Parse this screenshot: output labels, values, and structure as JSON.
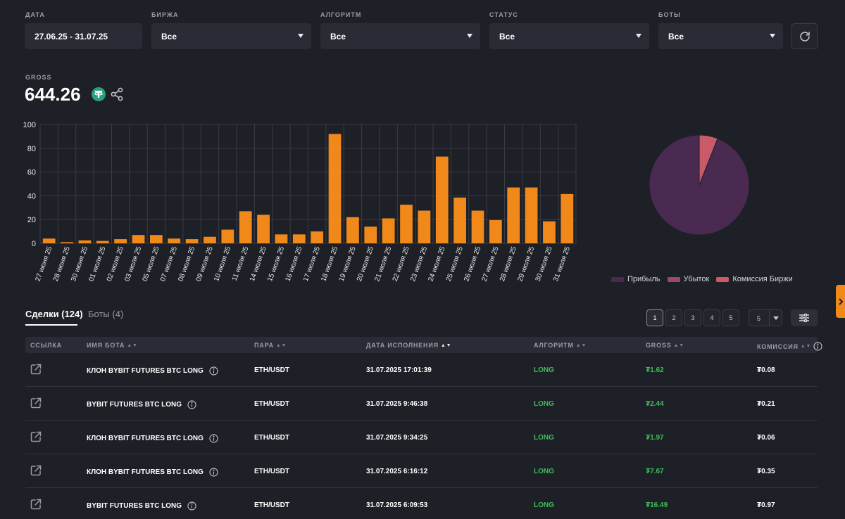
{
  "filters": [
    {
      "label": "ДАТА",
      "value": "27.06.25 - 31.07.25",
      "dropdown": false
    },
    {
      "label": "БИРЖА",
      "value": "Все",
      "dropdown": true
    },
    {
      "label": "АЛГОРИТМ",
      "value": "Все",
      "dropdown": true
    },
    {
      "label": "СТАТУС",
      "value": "Все",
      "dropdown": true
    },
    {
      "label": "БОТЫ",
      "value": "Все",
      "dropdown": true
    }
  ],
  "refresh_icon": "refresh-icon",
  "gross": {
    "label": "GROSS",
    "value": "644.26",
    "currency_icon": "tether-icon",
    "share_icon": "share-icon"
  },
  "chart_data": [
    {
      "type": "bar",
      "color": "#f0891a",
      "ylim": [
        0,
        100
      ],
      "yticks": [
        0,
        20,
        40,
        60,
        80,
        100
      ],
      "grid": true,
      "categories": [
        "27 июня 25",
        "28 июня 25",
        "30 июня 25",
        "01 июля 25",
        "02 июля 25",
        "03 июля 25",
        "05 июля 25",
        "07 июля 25",
        "08 июля 25",
        "09 июля 25",
        "10 июля 25",
        "11 июля 25",
        "14 июля 25",
        "15 июля 25",
        "16 июля 25",
        "17 июля 25",
        "18 июля 25",
        "19 июля 25",
        "20 июля 25",
        "21 июля 25",
        "22 июля 25",
        "23 июля 25",
        "24 июля 25",
        "25 июля 25",
        "26 июля 25",
        "27 июля 25",
        "28 июля 25",
        "29 июля 25",
        "30 июля 25",
        "31 июля 25"
      ],
      "values": [
        4,
        1,
        2.5,
        2,
        3.5,
        7,
        7,
        4,
        3.5,
        5.5,
        11.5,
        27,
        24,
        7.5,
        7.5,
        10,
        92,
        22,
        14,
        21,
        32.5,
        27.5,
        73,
        38.5,
        27.5,
        19.5,
        47,
        47,
        18.5,
        41.5
      ]
    },
    {
      "type": "pie",
      "legend_position": "bottom",
      "series": [
        {
          "name": "Прибыль",
          "value": 94,
          "color": "#4a2a50"
        },
        {
          "name": "Убыток",
          "value": 0,
          "color": "#9a4a66"
        },
        {
          "name": "Комиссия Биржи",
          "value": 6,
          "color": "#c85a6a"
        }
      ]
    }
  ],
  "tabs": [
    {
      "label": "Сделки (124)",
      "active": true
    },
    {
      "label": "Боты (4)",
      "active": false
    }
  ],
  "pagination": {
    "pages": [
      "1",
      "2",
      "3",
      "4",
      "5"
    ],
    "current": "1",
    "per_page": "5",
    "settings_icon": "sliders-icon"
  },
  "table": {
    "columns": [
      {
        "label": "ССЫЛКА",
        "sort": false
      },
      {
        "label": "ИМЯ БОТА",
        "sort": true
      },
      {
        "label": "ПАРА",
        "sort": true
      },
      {
        "label": "ДАТА ИСПОЛНЕНИЯ",
        "sort": true,
        "sorted": true
      },
      {
        "label": "АЛГОРИТМ",
        "sort": true
      },
      {
        "label": "GROSS",
        "sort": true
      },
      {
        "label": "КОМИССИЯ",
        "sort": true,
        "info": true
      }
    ],
    "rows": [
      {
        "bot": "КЛОН BYBIT FUTURES BTC LONG",
        "pair": "ETH/USDT",
        "date": "31.07.2025 17:01:39",
        "algo": "LONG",
        "gross": "₮1.62",
        "fee": "₮0.08"
      },
      {
        "bot": "BYBIT FUTURES BTC LONG",
        "pair": "ETH/USDT",
        "date": "31.07.2025 9:46:38",
        "algo": "LONG",
        "gross": "₮2.44",
        "fee": "₮0.21"
      },
      {
        "bot": "КЛОН BYBIT FUTURES BTC LONG",
        "pair": "ETH/USDT",
        "date": "31.07.2025 9:34:25",
        "algo": "LONG",
        "gross": "₮1.97",
        "fee": "₮0.06"
      },
      {
        "bot": "КЛОН BYBIT FUTURES BTC LONG",
        "pair": "ETH/USDT",
        "date": "31.07.2025 6:16:12",
        "algo": "LONG",
        "gross": "₮7.67",
        "fee": "₮0.35"
      },
      {
        "bot": "BYBIT FUTURES BTC LONG",
        "pair": "ETH/USDT",
        "date": "31.07.2025 6:09:53",
        "algo": "LONG",
        "gross": "₮16.49",
        "fee": "₮0.97"
      }
    ]
  }
}
